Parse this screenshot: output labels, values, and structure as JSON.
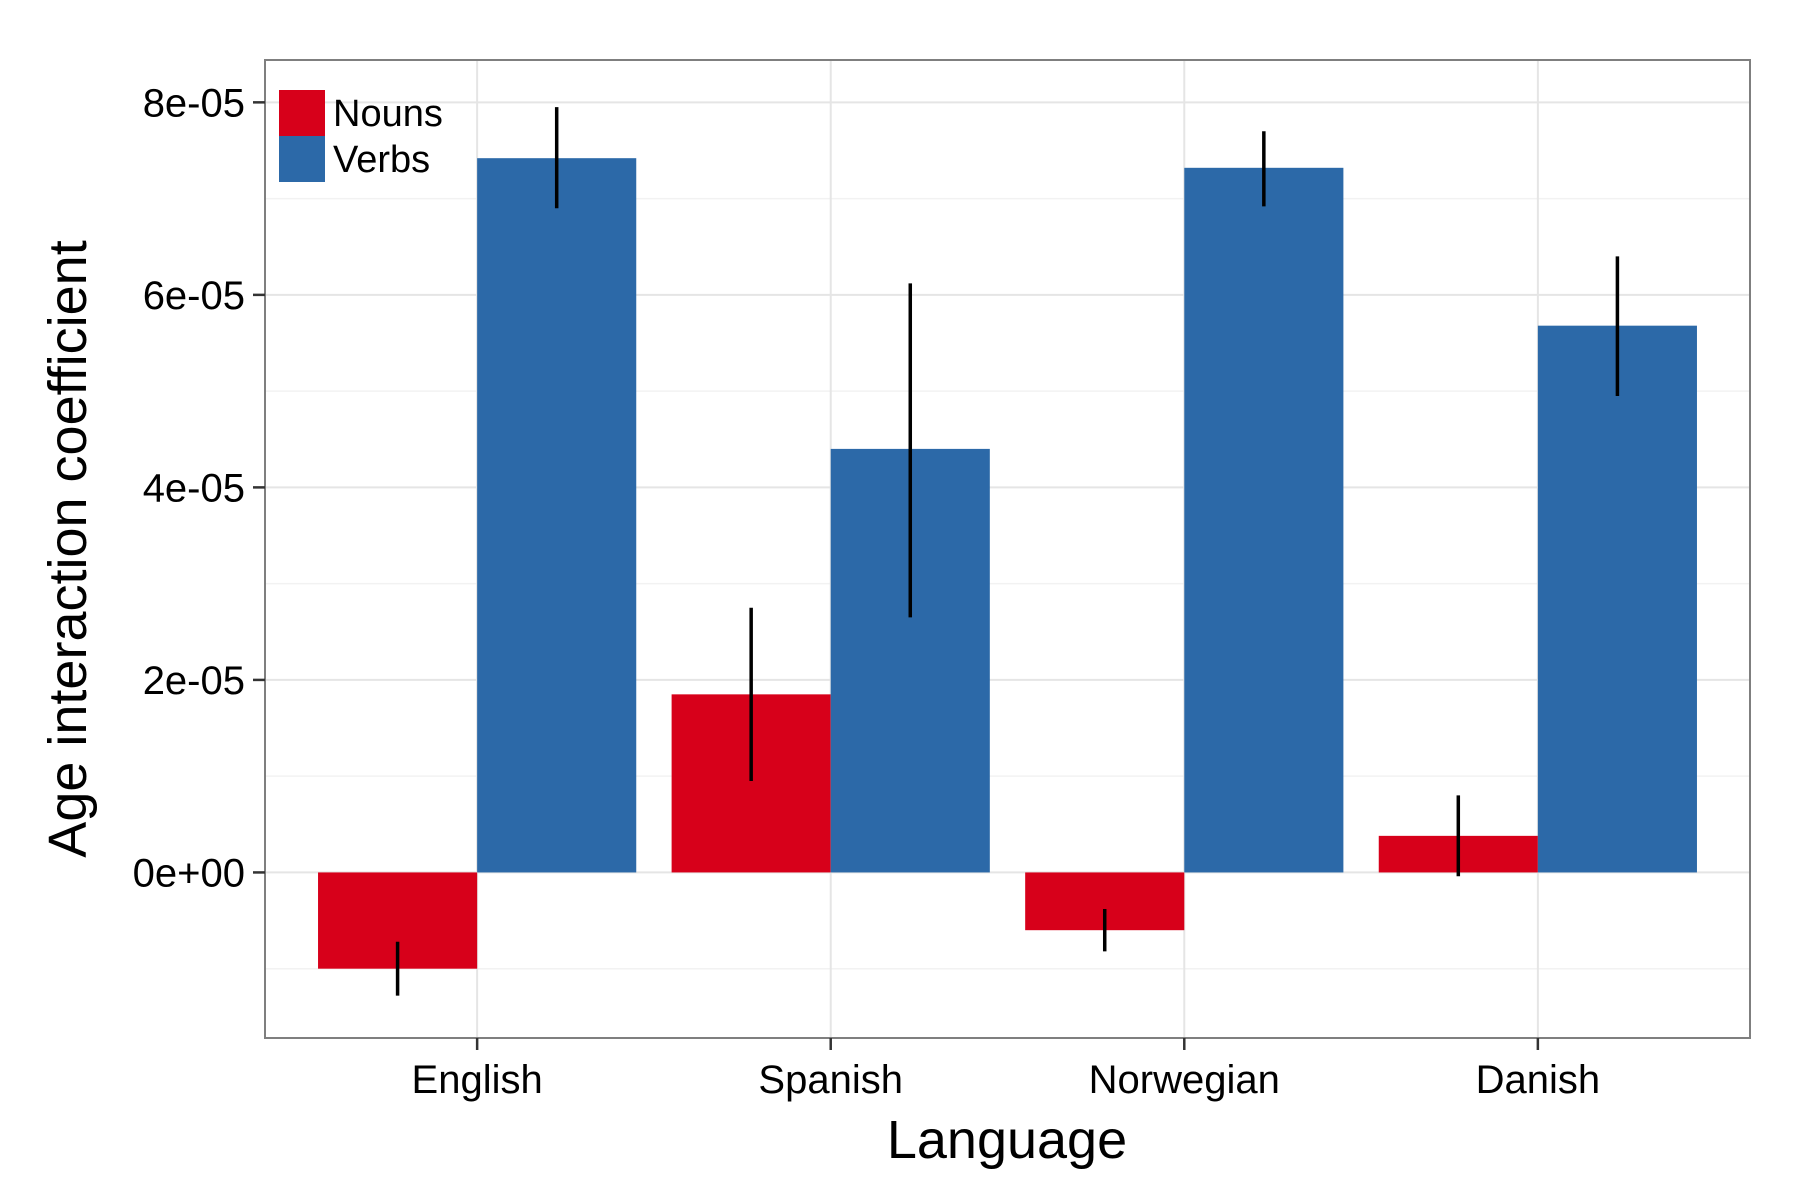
{
  "chart_data": {
    "type": "bar",
    "title": "",
    "xlabel": "Language",
    "ylabel": "Age interaction coefficient",
    "categories": [
      "English",
      "Spanish",
      "Norwegian",
      "Danish"
    ],
    "series": [
      {
        "name": "Nouns",
        "color": "#d7001a",
        "values": [
          -1e-05,
          1.85e-05,
          -6e-06,
          3.8e-06
        ],
        "error_low": [
          -1.28e-05,
          9.5e-06,
          -8.2e-06,
          -4e-07
        ],
        "error_high": [
          -7.2e-06,
          2.75e-05,
          -3.8e-06,
          8e-06
        ]
      },
      {
        "name": "Verbs",
        "color": "#2c69a8",
        "values": [
          7.42e-05,
          4.4e-05,
          7.32e-05,
          5.68e-05
        ],
        "error_low": [
          6.9e-05,
          2.65e-05,
          6.92e-05,
          4.95e-05
        ],
        "error_high": [
          7.95e-05,
          6.12e-05,
          7.7e-05,
          6.4e-05
        ]
      }
    ],
    "yticks": [
      0,
      2e-05,
      4e-05,
      6e-05,
      8e-05
    ],
    "ytick_labels": [
      "0e+00",
      "2e-05",
      "4e-05",
      "6e-05",
      "8e-05"
    ],
    "ylim": [
      -1.72e-05,
      8.44e-05
    ],
    "grid": true,
    "legend_position": "top-left"
  }
}
